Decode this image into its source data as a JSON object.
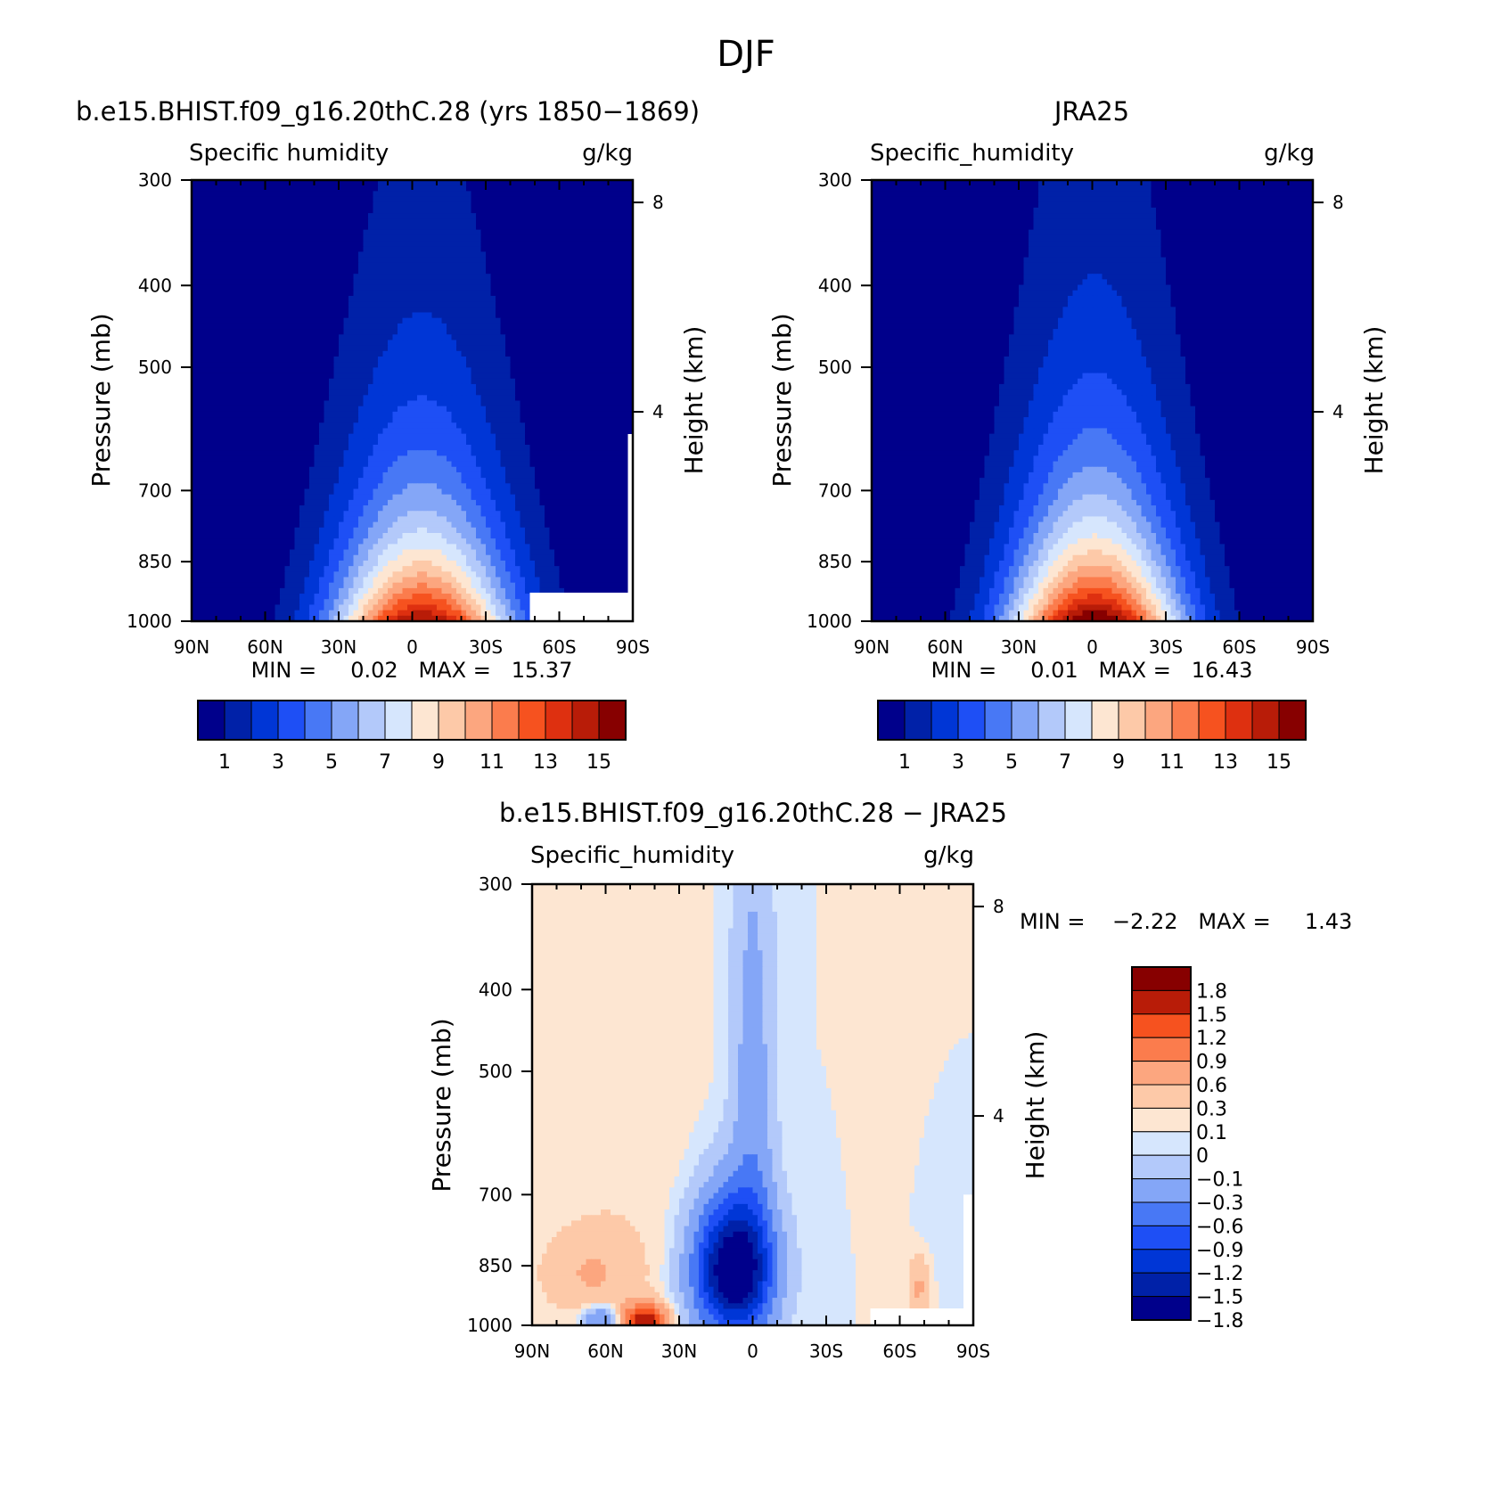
{
  "figure_title": "DJF",
  "colors": {
    "seq": [
      "#00008b",
      "#0021a8",
      "#0036d6",
      "#1e4ff5",
      "#4878f5",
      "#84a6f7",
      "#b3c9fa",
      "#d6e6fd",
      "#fde6d2",
      "#fdc9a8",
      "#fca67f",
      "#fb7c4d",
      "#f6521f",
      "#de3010",
      "#b81c08",
      "#870000"
    ],
    "div": [
      "#00008b",
      "#0021a8",
      "#0036d6",
      "#1e4ff5",
      "#4878f5",
      "#84a6f7",
      "#b3c9fa",
      "#d6e6fd",
      "#fde6d2",
      "#fdc9a8",
      "#fca67f",
      "#fb7c4d",
      "#f6521f",
      "#b81c08",
      "#870000"
    ]
  },
  "chart_data": [
    {
      "type": "heatmap",
      "title": "b.e15.BHIST.f09_g16.20thC.28 (yrs 1850−1869)",
      "variable": "Specific humidity",
      "units": "g/kg",
      "xlabel": "",
      "ylabel": "Pressure (mb)",
      "y2label": "Height (km)",
      "x_ticks": [
        "90N",
        "60N",
        "30N",
        "0",
        "30S",
        "60S",
        "90S"
      ],
      "x_range": [
        90,
        -90
      ],
      "y_ticks": [
        300,
        400,
        500,
        700,
        850,
        1000
      ],
      "y_range": [
        1000,
        300
      ],
      "y2_ticks": [
        8,
        4
      ],
      "stats": "MIN =     0.02   MAX =   15.37",
      "min": 0.02,
      "max": 15.37,
      "colorbar_labels": [
        "1",
        "3",
        "5",
        "7",
        "9",
        "11",
        "13",
        "15"
      ],
      "levels": [
        1,
        2,
        3,
        4,
        5,
        6,
        7,
        8,
        9,
        10,
        11,
        12,
        13,
        14,
        15
      ],
      "field": {
        "peak": 15.37,
        "center_lat": -4,
        "sigma_lat": 26,
        "scale_height": 280,
        "tropo_floor": 0.02
      },
      "missing_regions": [
        {
          "lat_range": [
            -48,
            -88
          ],
          "p_range": [
            925,
            1000
          ]
        },
        {
          "lat_range": [
            -88,
            -90
          ],
          "p_range": [
            600,
            1000
          ]
        }
      ]
    },
    {
      "type": "heatmap",
      "title": "JRA25",
      "variable": "Specific_humidity",
      "units": "g/kg",
      "xlabel": "",
      "ylabel": "Pressure (mb)",
      "y2label": "Height (km)",
      "x_ticks": [
        "90N",
        "60N",
        "30N",
        "0",
        "30S",
        "60S",
        "90S"
      ],
      "x_range": [
        90,
        -90
      ],
      "y_ticks": [
        300,
        400,
        500,
        700,
        850,
        1000
      ],
      "y_range": [
        1000,
        300
      ],
      "y2_ticks": [
        8,
        4
      ],
      "stats": "MIN =     0.01   MAX =   16.43",
      "min": 0.01,
      "max": 16.43,
      "colorbar_labels": [
        "1",
        "3",
        "5",
        "7",
        "9",
        "11",
        "13",
        "15"
      ],
      "levels": [
        1,
        2,
        3,
        4,
        5,
        6,
        7,
        8,
        9,
        10,
        11,
        12,
        13,
        14,
        15
      ],
      "field": {
        "peak": 16.43,
        "center_lat": -1,
        "sigma_lat": 25,
        "scale_height": 290,
        "tropo_floor": 0.01
      },
      "missing_regions": []
    },
    {
      "type": "heatmap",
      "title": "b.e15.BHIST.f09_g16.20thC.28 − JRA25",
      "variable": "Specific_humidity",
      "units": "g/kg",
      "xlabel": "",
      "ylabel": "Pressure (mb)",
      "y2label": "Height (km)",
      "x_ticks": [
        "90N",
        "60N",
        "30N",
        "0",
        "30S",
        "60S",
        "90S"
      ],
      "x_range": [
        90,
        -90
      ],
      "y_ticks": [
        300,
        400,
        500,
        700,
        850,
        1000
      ],
      "y_range": [
        1000,
        300
      ],
      "y2_ticks": [
        8,
        4
      ],
      "stats": "MIN =    −2.22   MAX =     1.43",
      "min": -2.22,
      "max": 1.43,
      "colorbar_labels": [
        "1.8",
        "1.5",
        "1.2",
        "0.9",
        "0.6",
        "0.3",
        "0.1",
        "0",
        "−0.1",
        "−0.3",
        "−0.6",
        "−0.9",
        "−1.2",
        "−1.5",
        "−1.8"
      ],
      "levels": [
        -1.8,
        -1.5,
        -1.2,
        -0.9,
        -0.6,
        -0.3,
        -0.1,
        0,
        0.1,
        0.3,
        0.6,
        0.9,
        1.2,
        1.5,
        1.8
      ],
      "field": {
        "features": [
          {
            "lat": 50,
            "p": 600,
            "sl": 20,
            "sp": 220,
            "amp": 0.08
          },
          {
            "lat": -72,
            "p": 450,
            "sl": 10,
            "sp": 200,
            "amp": 0.07
          },
          {
            "lat": 8,
            "p": 860,
            "sl": 11,
            "sp": 110,
            "amp": -2.22
          },
          {
            "lat": 0,
            "p": 550,
            "sl": 6,
            "sp": 260,
            "amp": -0.45
          },
          {
            "lat": 66,
            "p": 870,
            "sl": 14,
            "sp": 70,
            "amp": 0.3
          },
          {
            "lat": 44,
            "p": 985,
            "sl": 6,
            "sp": 30,
            "amp": 1.43
          },
          {
            "lat": 62,
            "p": 985,
            "sl": 5,
            "sp": 25,
            "amp": -0.7
          },
          {
            "lat": -68,
            "p": 900,
            "sl": 3,
            "sp": 50,
            "amp": 0.35
          },
          {
            "lat": -78,
            "p": 650,
            "sl": 8,
            "sp": 150,
            "amp": -0.1
          }
        ]
      },
      "missing_regions": [
        {
          "lat_range": [
            -48,
            -88
          ],
          "p_range": [
            955,
            1000
          ]
        },
        {
          "lat_range": [
            -86,
            -90
          ],
          "p_range": [
            700,
            1000
          ]
        }
      ]
    }
  ]
}
